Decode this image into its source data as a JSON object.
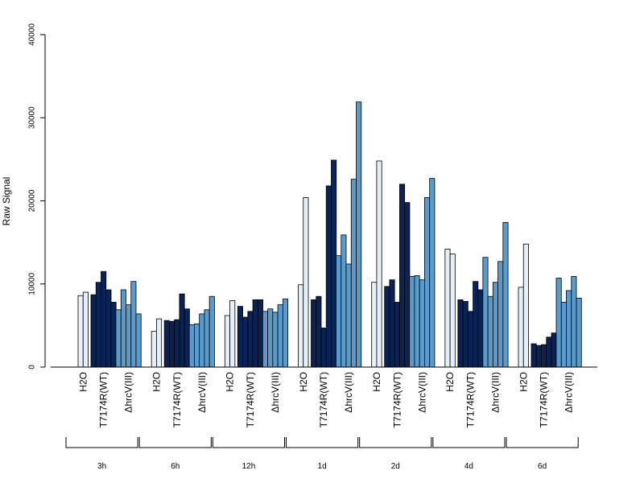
{
  "chart_data": {
    "type": "bar",
    "ylabel": "Raw Signal",
    "ylim": [
      0,
      40000
    ],
    "yticks": [
      0,
      10000,
      20000,
      30000,
      40000
    ],
    "treatments": [
      "H2O",
      "T7174R(WT)",
      "ΔhrcV(III)"
    ],
    "colors": {
      "H2O": "#e6eef8",
      "T7174R(WT)": "#0b2255",
      "ΔhrcV(III)": "#5a9bcc"
    },
    "groups": [
      {
        "label": "3h",
        "series": [
          {
            "treatment": "H2O",
            "values": [
              8600,
              9000
            ]
          },
          {
            "treatment": "T7174R(WT)",
            "values": [
              8700,
              10200,
              11500,
              9300,
              7800
            ]
          },
          {
            "treatment": "ΔhrcV(III)",
            "values": [
              6900,
              9300,
              7500,
              10300,
              6400
            ]
          }
        ]
      },
      {
        "label": "6h",
        "series": [
          {
            "treatment": "H2O",
            "values": [
              4300,
              5800
            ]
          },
          {
            "treatment": "T7174R(WT)",
            "values": [
              5600,
              5500,
              5700,
              8800,
              7000
            ]
          },
          {
            "treatment": "ΔhrcV(III)",
            "values": [
              5100,
              5200,
              6400,
              6900,
              8500
            ]
          }
        ]
      },
      {
        "label": "12h",
        "series": [
          {
            "treatment": "H2O",
            "values": [
              6200,
              8000
            ]
          },
          {
            "treatment": "T7174R(WT)",
            "values": [
              7300,
              6000,
              6700,
              8100,
              8100
            ]
          },
          {
            "treatment": "ΔhrcV(III)",
            "values": [
              6700,
              7000,
              6600,
              7500,
              8200
            ]
          }
        ]
      },
      {
        "label": "1d",
        "series": [
          {
            "treatment": "H2O",
            "values": [
              9900,
              20400
            ]
          },
          {
            "treatment": "T7174R(WT)",
            "values": [
              8100,
              8500,
              4700,
              21800,
              24900
            ]
          },
          {
            "treatment": "ΔhrcV(III)",
            "values": [
              13400,
              15900,
              12400,
              22600,
              31900
            ]
          }
        ]
      },
      {
        "label": "2d",
        "series": [
          {
            "treatment": "H2O",
            "values": [
              10200,
              24800
            ]
          },
          {
            "treatment": "T7174R(WT)",
            "values": [
              9700,
              10500,
              7800,
              22000,
              19800
            ]
          },
          {
            "treatment": "ΔhrcV(III)",
            "values": [
              10900,
              11000,
              10500,
              20400,
              22700
            ]
          }
        ]
      },
      {
        "label": "4d",
        "series": [
          {
            "treatment": "H2O",
            "values": [
              14200,
              13600
            ]
          },
          {
            "treatment": "T7174R(WT)",
            "values": [
              8100,
              7900,
              6700,
              10300,
              9300
            ]
          },
          {
            "treatment": "ΔhrcV(III)",
            "values": [
              13200,
              8500,
              10200,
              12700,
              17400
            ]
          }
        ]
      },
      {
        "label": "6d",
        "series": [
          {
            "treatment": "H2O",
            "values": [
              9600,
              14800
            ]
          },
          {
            "treatment": "T7174R(WT)",
            "values": [
              2800,
              2600,
              2700,
              3600,
              4100
            ]
          },
          {
            "treatment": "ΔhrcV(III)",
            "values": [
              10700,
              7800,
              9200,
              10900,
              8300
            ]
          }
        ]
      }
    ]
  }
}
